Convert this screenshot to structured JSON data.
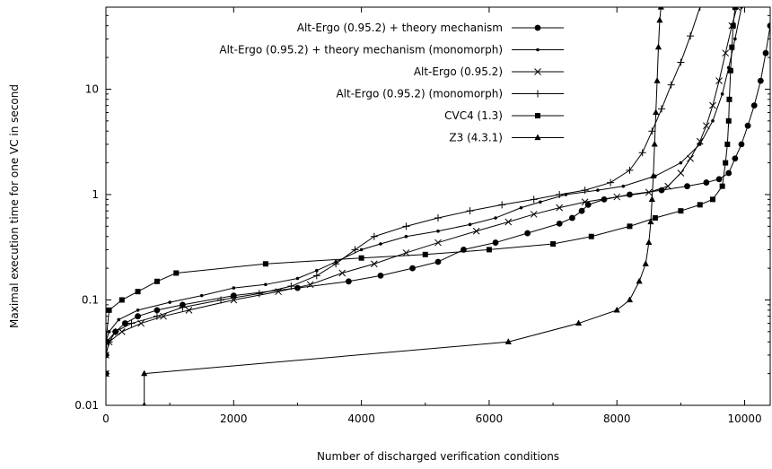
{
  "chart_data": {
    "type": "line",
    "title": "",
    "xlabel": "Number of discharged verification conditions",
    "ylabel": "Maximal execution time for one VC in second",
    "xlim": [
      0,
      10400
    ],
    "ylim": [
      0.01,
      60
    ],
    "yscale": "log",
    "xticks": [
      0,
      2000,
      4000,
      6000,
      8000,
      10000
    ],
    "xtick_labels": [
      "0",
      "2000",
      "4000",
      "6000",
      "8000",
      "10000"
    ],
    "yticks": [
      0.01,
      0.1,
      1,
      10
    ],
    "ytick_labels": [
      "0.01",
      "0.1",
      "1",
      "10"
    ],
    "grid": false,
    "legend_position": "top-right",
    "series": [
      {
        "name": "Alt-Ergo (0.95.2) + theory mechanism",
        "marker": "circle",
        "points": [
          [
            0,
            0.02
          ],
          [
            0,
            0.03
          ],
          [
            10,
            0.04
          ],
          [
            150,
            0.05
          ],
          [
            300,
            0.06
          ],
          [
            500,
            0.07
          ],
          [
            800,
            0.08
          ],
          [
            1200,
            0.09
          ],
          [
            2000,
            0.11
          ],
          [
            3000,
            0.13
          ],
          [
            3800,
            0.15
          ],
          [
            4300,
            0.17
          ],
          [
            4800,
            0.2
          ],
          [
            5200,
            0.23
          ],
          [
            5600,
            0.3
          ],
          [
            6100,
            0.35
          ],
          [
            6600,
            0.43
          ],
          [
            7100,
            0.53
          ],
          [
            7300,
            0.6
          ],
          [
            7450,
            0.7
          ],
          [
            7550,
            0.8
          ],
          [
            7800,
            0.9
          ],
          [
            8200,
            1.0
          ],
          [
            8700,
            1.1
          ],
          [
            9100,
            1.2
          ],
          [
            9400,
            1.3
          ],
          [
            9600,
            1.4
          ],
          [
            9750,
            1.6
          ],
          [
            9850,
            2.2
          ],
          [
            9950,
            3.0
          ],
          [
            10050,
            4.5
          ],
          [
            10150,
            7.0
          ],
          [
            10250,
            12
          ],
          [
            10330,
            22
          ],
          [
            10400,
            40
          ]
        ]
      },
      {
        "name": "Alt-Ergo (0.95.2) + theory mechanism (monomorph)",
        "marker": "dot",
        "points": [
          [
            0,
            0.02
          ],
          [
            0,
            0.04
          ],
          [
            50,
            0.05
          ],
          [
            200,
            0.065
          ],
          [
            500,
            0.08
          ],
          [
            1000,
            0.095
          ],
          [
            1500,
            0.11
          ],
          [
            2000,
            0.13
          ],
          [
            2500,
            0.14
          ],
          [
            3000,
            0.16
          ],
          [
            3300,
            0.19
          ],
          [
            3600,
            0.23
          ],
          [
            4000,
            0.3
          ],
          [
            4300,
            0.34
          ],
          [
            4700,
            0.4
          ],
          [
            5200,
            0.45
          ],
          [
            5700,
            0.52
          ],
          [
            6100,
            0.6
          ],
          [
            6500,
            0.75
          ],
          [
            6800,
            0.85
          ],
          [
            7200,
            1.0
          ],
          [
            7700,
            1.1
          ],
          [
            8100,
            1.2
          ],
          [
            8600,
            1.5
          ],
          [
            9000,
            2.0
          ],
          [
            9300,
            3.0
          ],
          [
            9500,
            5.0
          ],
          [
            9650,
            9.0
          ],
          [
            9750,
            16
          ],
          [
            9850,
            30
          ],
          [
            9950,
            60
          ]
        ]
      },
      {
        "name": "Alt-Ergo (0.95.2)",
        "marker": "cross",
        "points": [
          [
            0,
            0.02
          ],
          [
            0,
            0.03
          ],
          [
            50,
            0.04
          ],
          [
            250,
            0.05
          ],
          [
            550,
            0.06
          ],
          [
            900,
            0.07
          ],
          [
            1300,
            0.08
          ],
          [
            2000,
            0.1
          ],
          [
            2700,
            0.12
          ],
          [
            3200,
            0.14
          ],
          [
            3700,
            0.18
          ],
          [
            4200,
            0.22
          ],
          [
            4700,
            0.28
          ],
          [
            5200,
            0.35
          ],
          [
            5800,
            0.45
          ],
          [
            6300,
            0.55
          ],
          [
            6700,
            0.65
          ],
          [
            7100,
            0.75
          ],
          [
            7500,
            0.85
          ],
          [
            8000,
            0.95
          ],
          [
            8500,
            1.05
          ],
          [
            8800,
            1.2
          ],
          [
            9000,
            1.6
          ],
          [
            9150,
            2.2
          ],
          [
            9300,
            3.2
          ],
          [
            9400,
            4.5
          ],
          [
            9500,
            7.0
          ],
          [
            9600,
            12
          ],
          [
            9700,
            22
          ],
          [
            9800,
            40
          ],
          [
            9880,
            60
          ]
        ]
      },
      {
        "name": "Alt-Ergo (0.95.2) (monomorph)",
        "marker": "plus",
        "points": [
          [
            0,
            0.02
          ],
          [
            0,
            0.03
          ],
          [
            50,
            0.04
          ],
          [
            150,
            0.05
          ],
          [
            400,
            0.06
          ],
          [
            800,
            0.07
          ],
          [
            1200,
            0.085
          ],
          [
            1800,
            0.1
          ],
          [
            2400,
            0.115
          ],
          [
            2900,
            0.135
          ],
          [
            3300,
            0.17
          ],
          [
            3600,
            0.22
          ],
          [
            3900,
            0.3
          ],
          [
            4200,
            0.4
          ],
          [
            4700,
            0.5
          ],
          [
            5200,
            0.6
          ],
          [
            5700,
            0.7
          ],
          [
            6200,
            0.8
          ],
          [
            6700,
            0.9
          ],
          [
            7100,
            1.0
          ],
          [
            7500,
            1.1
          ],
          [
            7900,
            1.3
          ],
          [
            8200,
            1.7
          ],
          [
            8400,
            2.5
          ],
          [
            8550,
            4.0
          ],
          [
            8700,
            6.5
          ],
          [
            8850,
            11
          ],
          [
            9000,
            18
          ],
          [
            9150,
            32
          ],
          [
            9300,
            60
          ]
        ]
      },
      {
        "name": "CVC4 (1.3)",
        "marker": "square",
        "points": [
          [
            0,
            0.02
          ],
          [
            0,
            0.04
          ],
          [
            50,
            0.08
          ],
          [
            250,
            0.1
          ],
          [
            500,
            0.12
          ],
          [
            800,
            0.15
          ],
          [
            1100,
            0.18
          ],
          [
            2500,
            0.22
          ],
          [
            4000,
            0.25
          ],
          [
            5000,
            0.27
          ],
          [
            6000,
            0.3
          ],
          [
            7000,
            0.34
          ],
          [
            7600,
            0.4
          ],
          [
            8200,
            0.5
          ],
          [
            8600,
            0.6
          ],
          [
            9000,
            0.7
          ],
          [
            9300,
            0.8
          ],
          [
            9500,
            0.9
          ],
          [
            9650,
            1.2
          ],
          [
            9700,
            2.0
          ],
          [
            9730,
            3.0
          ],
          [
            9750,
            5.0
          ],
          [
            9760,
            8.0
          ],
          [
            9780,
            15
          ],
          [
            9800,
            25
          ],
          [
            9820,
            40
          ],
          [
            9850,
            60
          ]
        ]
      },
      {
        "name": "Z3 (4.3.1)",
        "marker": "triangle",
        "points": [
          [
            600,
            0.01
          ],
          [
            600,
            0.02
          ],
          [
            6300,
            0.04
          ],
          [
            7400,
            0.06
          ],
          [
            8000,
            0.08
          ],
          [
            8200,
            0.1
          ],
          [
            8350,
            0.15
          ],
          [
            8450,
            0.22
          ],
          [
            8500,
            0.35
          ],
          [
            8530,
            0.55
          ],
          [
            8550,
            0.9
          ],
          [
            8570,
            1.5
          ],
          [
            8590,
            3.0
          ],
          [
            8610,
            6.0
          ],
          [
            8630,
            12
          ],
          [
            8650,
            25
          ],
          [
            8670,
            45
          ],
          [
            8690,
            60
          ]
        ]
      }
    ]
  }
}
